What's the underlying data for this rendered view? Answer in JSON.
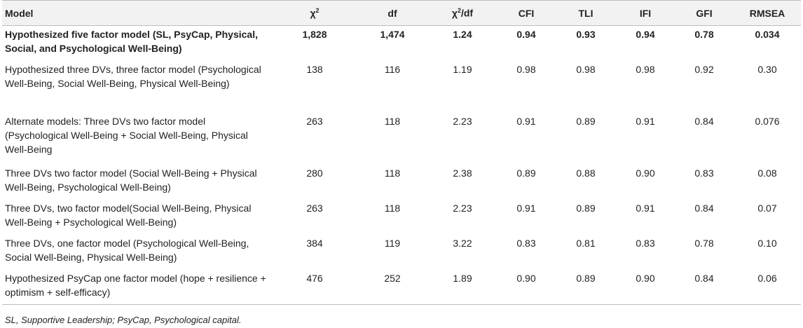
{
  "headers": {
    "model": "Model",
    "chi2": "χ",
    "chi2_sup": "2",
    "df": "df",
    "chi2df_a": "χ",
    "chi2df_sup": "2",
    "chi2df_b": "/df",
    "cfi": "CFI",
    "tli": "TLI",
    "ifi": "IFI",
    "gfi": "GFI",
    "rmsea": "RMSEA"
  },
  "rows": [
    {
      "model": "Hypothesized five factor model (SL, PsyCap, Physical, Social, and Psychological Well-Being)",
      "chi2": "1,828",
      "df": "1,474",
      "chi2df": "1.24",
      "cfi": "0.94",
      "tli": "0.93",
      "ifi": "0.94",
      "gfi": "0.78",
      "rmsea": "0.034",
      "bold": true
    },
    {
      "model": "Hypothesized three DVs, three factor model (Psychological Well-Being, Social Well-Being, Physical Well-Being)",
      "chi2": "138",
      "df": "116",
      "chi2df": "1.19",
      "cfi": "0.98",
      "tli": "0.98",
      "ifi": "0.98",
      "gfi": "0.92",
      "rmsea": "0.30"
    },
    {
      "model": "Alternate models: Three DVs two factor model (Psychological Well-Being + Social Well-Being, Physical Well-Being",
      "chi2": "263",
      "df": "118",
      "chi2df": "2.23",
      "cfi": "0.91",
      "tli": "0.89",
      "ifi": "0.91",
      "gfi": "0.84",
      "rmsea": "0.076"
    },
    {
      "model": "Three DVs two factor model (Social Well-Being + Physical Well-Being, Psychological Well-Being)",
      "chi2": "280",
      "df": "118",
      "chi2df": "2.38",
      "cfi": "0.89",
      "tli": "0.88",
      "ifi": "0.90",
      "gfi": "0.83",
      "rmsea": "0.08"
    },
    {
      "model": "Three DVs, two factor model(Social Well-Being, Physical Well-Being + Psychological Well-Being)",
      "chi2": "263",
      "df": "118",
      "chi2df": "2.23",
      "cfi": "0.91",
      "tli": "0.89",
      "ifi": "0.91",
      "gfi": "0.84",
      "rmsea": "0.07"
    },
    {
      "model": "Three DVs, one factor model (Psychological Well-Being, Social Well-Being, Physical Well-Being)",
      "chi2": "384",
      "df": "119",
      "chi2df": "3.22",
      "cfi": "0.83",
      "tli": "0.81",
      "ifi": "0.83",
      "gfi": "0.78",
      "rmsea": "0.10"
    },
    {
      "model": "Hypothesized PsyCap one factor model (hope + resilience + optimism + self-efficacy)",
      "chi2": "476",
      "df": "252",
      "chi2df": "1.89",
      "cfi": "0.90",
      "tli": "0.89",
      "ifi": "0.90",
      "gfi": "0.84",
      "rmsea": "0.06"
    }
  ],
  "footnote": "SL, Supportive Leadership; PsyCap, Psychological capital."
}
